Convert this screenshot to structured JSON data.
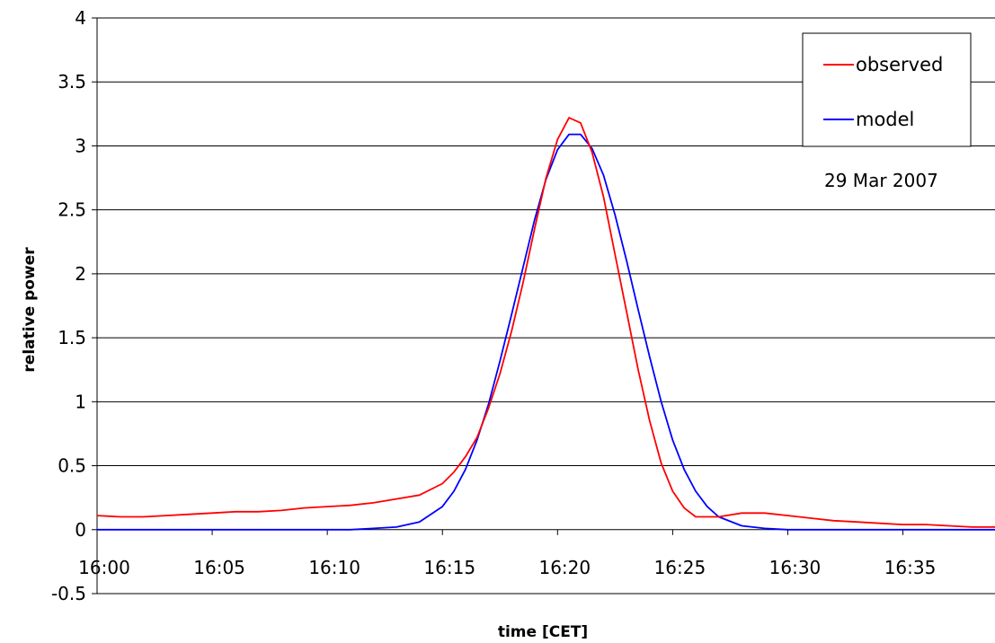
{
  "chart_data": {
    "type": "line",
    "xlabel": "time [CET]",
    "ylabel": "relative power",
    "xlim": [
      "16:00",
      "16:39"
    ],
    "ylim": [
      -0.5,
      4
    ],
    "x_ticks": [
      "16:00",
      "16:05",
      "16:10",
      "16:15",
      "16:20",
      "16:25",
      "16:30",
      "16:35"
    ],
    "y_ticks": [
      "-0.5",
      "0",
      "0.5",
      "1",
      "1.5",
      "2",
      "2.5",
      "3",
      "3.5",
      "4"
    ],
    "grid": "horizontal",
    "legend_position": "top-right",
    "annotation": "29 Mar 2007",
    "series": [
      {
        "name": "observed",
        "color": "#ff0000",
        "x": [
          "16:00",
          "16:01",
          "16:02",
          "16:03",
          "16:04",
          "16:05",
          "16:06",
          "16:07",
          "16:08",
          "16:09",
          "16:10",
          "16:11",
          "16:12",
          "16:13",
          "16:14",
          "16:15",
          "16:15:30",
          "16:16",
          "16:16:30",
          "16:17",
          "16:17:30",
          "16:18",
          "16:18:30",
          "16:19",
          "16:19:30",
          "16:20",
          "16:20:30",
          "16:21",
          "16:21:30",
          "16:22",
          "16:22:30",
          "16:23",
          "16:23:30",
          "16:24",
          "16:24:30",
          "16:25",
          "16:25:30",
          "16:26",
          "16:27",
          "16:28",
          "16:29",
          "16:30",
          "16:31",
          "16:32",
          "16:33",
          "16:34",
          "16:35",
          "16:36",
          "16:37",
          "16:38",
          "16:39"
        ],
        "y": [
          0.11,
          0.1,
          0.1,
          0.11,
          0.12,
          0.13,
          0.14,
          0.14,
          0.15,
          0.17,
          0.18,
          0.19,
          0.21,
          0.24,
          0.27,
          0.36,
          0.45,
          0.57,
          0.72,
          0.95,
          1.22,
          1.55,
          1.93,
          2.35,
          2.75,
          3.05,
          3.22,
          3.18,
          2.95,
          2.6,
          2.15,
          1.7,
          1.25,
          0.85,
          0.52,
          0.3,
          0.17,
          0.1,
          0.1,
          0.13,
          0.13,
          0.11,
          0.09,
          0.07,
          0.06,
          0.05,
          0.04,
          0.04,
          0.03,
          0.02,
          0.02
        ]
      },
      {
        "name": "model",
        "color": "#0000ff",
        "x": [
          "16:00",
          "16:02",
          "16:04",
          "16:06",
          "16:08",
          "16:10",
          "16:11",
          "16:12",
          "16:13",
          "16:14",
          "16:15",
          "16:15:30",
          "16:16",
          "16:16:30",
          "16:17",
          "16:17:30",
          "16:18",
          "16:18:30",
          "16:19",
          "16:19:30",
          "16:20",
          "16:20:30",
          "16:21",
          "16:21:30",
          "16:22",
          "16:22:30",
          "16:23",
          "16:23:30",
          "16:24",
          "16:24:30",
          "16:25",
          "16:25:30",
          "16:26",
          "16:26:30",
          "16:27",
          "16:28",
          "16:29",
          "16:30",
          "16:32",
          "16:35",
          "16:39"
        ],
        "y": [
          0,
          0,
          0,
          0,
          0,
          0,
          0,
          0.01,
          0.02,
          0.06,
          0.18,
          0.3,
          0.47,
          0.7,
          0.98,
          1.32,
          1.68,
          2.05,
          2.42,
          2.74,
          2.97,
          3.09,
          3.09,
          2.98,
          2.77,
          2.46,
          2.1,
          1.72,
          1.35,
          1.0,
          0.7,
          0.47,
          0.3,
          0.18,
          0.1,
          0.03,
          0.01,
          0,
          0,
          0,
          0
        ]
      }
    ]
  }
}
